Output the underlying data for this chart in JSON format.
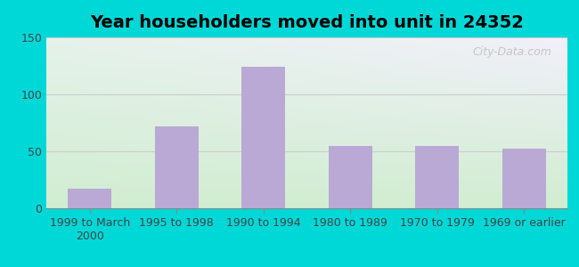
{
  "title": "Year householders moved into unit in 24352",
  "categories": [
    "1999 to March\n2000",
    "1995 to 1998",
    "1990 to 1994",
    "1980 to 1989",
    "1970 to 1979",
    "1969 or earlier"
  ],
  "values": [
    17,
    72,
    124,
    55,
    55,
    52
  ],
  "bar_color": "#b9a9d4",
  "background_outer": "#00d8d8",
  "background_plot_topleft": "#e8f4e8",
  "background_plot_topright": "#e8e8f4",
  "background_plot_bottom": "#d0ead0",
  "ylim": [
    0,
    150
  ],
  "yticks": [
    0,
    50,
    100,
    150
  ],
  "grid_color": "#cccccc",
  "title_fontsize": 14,
  "tick_fontsize": 9,
  "watermark": "City-Data.com"
}
